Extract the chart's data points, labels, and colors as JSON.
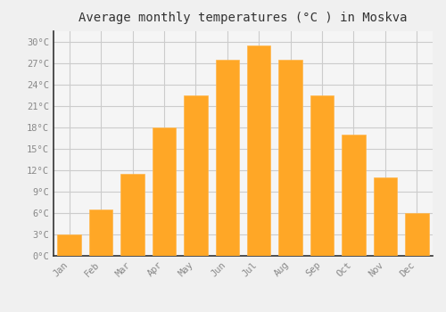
{
  "months": [
    "Jan",
    "Feb",
    "Mar",
    "Apr",
    "May",
    "Jun",
    "Jul",
    "Aug",
    "Sep",
    "Oct",
    "Nov",
    "Dec"
  ],
  "values": [
    3,
    6.5,
    11.5,
    18,
    22.5,
    27.5,
    29.5,
    27.5,
    22.5,
    17,
    11,
    6
  ],
  "bar_color": "#FFA726",
  "bar_edge_color": "#FFB74D",
  "title": "Average monthly temperatures (°C ) in Moskva",
  "ylim": [
    0,
    31.5
  ],
  "yticks": [
    0,
    3,
    6,
    9,
    12,
    15,
    18,
    21,
    24,
    27,
    30
  ],
  "ytick_labels": [
    "0°C",
    "3°C",
    "6°C",
    "9°C",
    "12°C",
    "15°C",
    "18°C",
    "21°C",
    "24°C",
    "27°C",
    "30°C"
  ],
  "background_color": "#f0f0f0",
  "plot_bg_color": "#f5f5f5",
  "grid_color": "#cccccc",
  "title_fontsize": 10,
  "tick_fontsize": 7.5,
  "font_family": "monospace",
  "tick_color": "#888888",
  "spine_color": "#333333"
}
